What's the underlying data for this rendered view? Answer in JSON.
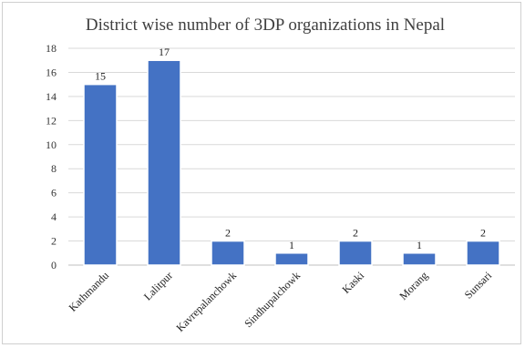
{
  "chart_data": {
    "type": "bar",
    "title": "District wise number of 3DP organizations in Nepal",
    "categories": [
      "Kathmandu",
      "Lalitpur",
      "Kavrepalanchowk",
      "Sindhupalchowk",
      "Kaski",
      "Morang",
      "Sunsari"
    ],
    "values": [
      15,
      17,
      2,
      1,
      2,
      1,
      2
    ],
    "data_labels": [
      "15",
      "17",
      "2",
      "1",
      "2",
      "1",
      "2"
    ],
    "yticks": [
      "0",
      "2",
      "4",
      "6",
      "8",
      "10",
      "12",
      "14",
      "16",
      "18"
    ],
    "ylim": [
      0,
      18
    ],
    "xlabel": "",
    "ylabel": "",
    "grid": true,
    "legend": "none",
    "bar_color": "#4472c4",
    "bar_edge_color": "#ffffff",
    "grid_color": "#d9d9d9"
  }
}
